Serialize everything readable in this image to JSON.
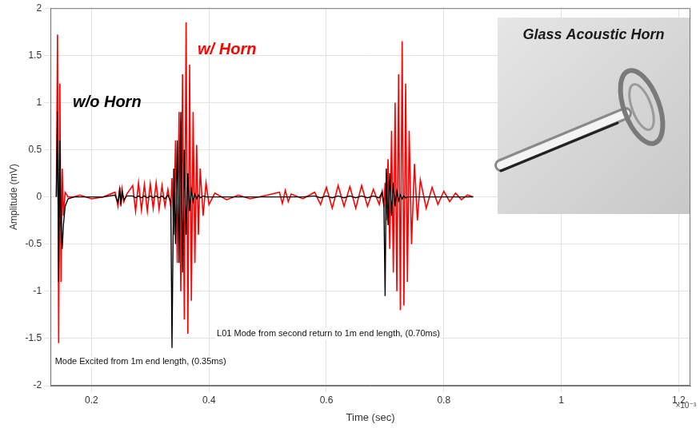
{
  "chart_data": {
    "type": "line",
    "x_label": "Time (sec)",
    "y_label": "Amplitude (mV)",
    "x_scale_note": "×10⁻³",
    "inset_title": "Glass Acoustic Horn",
    "annotations": [
      "Mode Excited from 1m end length, (0.35ms)",
      "L01 Mode from second return to 1m end length, (0.70ms)"
    ],
    "x": [
      0.14,
      0.142,
      0.144,
      0.146,
      0.148,
      0.15,
      0.152,
      0.155,
      0.16,
      0.17,
      0.18,
      0.2,
      0.22,
      0.24,
      0.245,
      0.248,
      0.25,
      0.252,
      0.255,
      0.26,
      0.27,
      0.275,
      0.28,
      0.285,
      0.29,
      0.295,
      0.3,
      0.305,
      0.31,
      0.315,
      0.32,
      0.325,
      0.33,
      0.335,
      0.337,
      0.34,
      0.343,
      0.346,
      0.349,
      0.352,
      0.355,
      0.358,
      0.361,
      0.364,
      0.367,
      0.37,
      0.373,
      0.376,
      0.379,
      0.382,
      0.385,
      0.39,
      0.395,
      0.4,
      0.41,
      0.43,
      0.45,
      0.47,
      0.5,
      0.52,
      0.525,
      0.53,
      0.535,
      0.54,
      0.56,
      0.58,
      0.59,
      0.6,
      0.61,
      0.62,
      0.63,
      0.64,
      0.65,
      0.66,
      0.67,
      0.68,
      0.69,
      0.695,
      0.698,
      0.7,
      0.702,
      0.705,
      0.708,
      0.711,
      0.714,
      0.717,
      0.72,
      0.723,
      0.726,
      0.729,
      0.732,
      0.735,
      0.738,
      0.741,
      0.745,
      0.75,
      0.755,
      0.76,
      0.77,
      0.78,
      0.79,
      0.8,
      0.81,
      0.82,
      0.83,
      0.84,
      0.85
    ],
    "series": [
      {
        "name": "w/ Horn",
        "color": "#ff0000",
        "values": [
          0,
          1.72,
          -1.55,
          1.2,
          -0.9,
          0.3,
          -0.2,
          0.05,
          0,
          0,
          0.02,
          -0.02,
          0,
          0.05,
          -0.1,
          0.1,
          -0.1,
          0.08,
          -0.05,
          0.03,
          0.12,
          -0.15,
          0.15,
          -0.14,
          0.13,
          -0.15,
          0.14,
          -0.12,
          0.15,
          -0.13,
          0.12,
          -0.1,
          0.08,
          -0.1,
          0.2,
          -0.4,
          0.6,
          -0.7,
          0.9,
          -1.0,
          1.3,
          -1.3,
          1.85,
          -1.45,
          1.4,
          -1.1,
          0.9,
          -0.7,
          0.55,
          -0.4,
          0.3,
          -0.2,
          0.15,
          -0.08,
          0.04,
          -0.03,
          0.02,
          -0.02,
          0.02,
          0.05,
          -0.07,
          0.07,
          -0.05,
          0.03,
          -0.02,
          0.05,
          -0.08,
          0.1,
          -0.12,
          0.12,
          -0.1,
          0.11,
          -0.12,
          0.12,
          -0.1,
          0.08,
          -0.08,
          0.06,
          -0.1,
          0.15,
          -0.25,
          0.4,
          -0.55,
          0.7,
          -0.8,
          1.0,
          -1.0,
          1.3,
          -1.2,
          1.65,
          -1.15,
          1.2,
          -0.9,
          0.7,
          -0.5,
          0.35,
          -0.25,
          0.18,
          -0.12,
          0.1,
          -0.08,
          0.06,
          -0.05,
          0.04,
          -0.03,
          0.02,
          0
        ]
      },
      {
        "name": "w/o Horn",
        "color": "#000000",
        "values": [
          0,
          0.9,
          -0.9,
          0.6,
          -0.3,
          -0.55,
          -0.3,
          -0.1,
          -0.02,
          0,
          0,
          0,
          0,
          0.02,
          -0.06,
          0.08,
          -0.08,
          0.06,
          -0.03,
          0.01,
          0.01,
          -0.01,
          0.01,
          -0.01,
          0.01,
          -0.01,
          0.01,
          -0.01,
          0.01,
          -0.01,
          0.01,
          -0.02,
          0.02,
          -0.05,
          -1.6,
          0.3,
          -0.5,
          0.6,
          -0.7,
          0.9,
          -0.8,
          0.5,
          -0.4,
          0.25,
          -0.15,
          0.08,
          -0.05,
          0.03,
          -0.02,
          0.02,
          -0.01,
          0.01,
          0,
          0,
          0,
          0,
          0,
          0,
          0,
          0,
          0,
          0,
          0,
          0,
          0,
          0.01,
          -0.01,
          0.01,
          -0.01,
          0.01,
          -0.01,
          0.01,
          -0.01,
          0.01,
          -0.01,
          0.01,
          -0.01,
          0.05,
          -0.1,
          -1.05,
          0.3,
          -0.3,
          0.25,
          -0.2,
          0.15,
          -0.1,
          0.06,
          -0.04,
          0.02,
          -0.02,
          0.01,
          -0.01,
          0,
          0,
          0,
          0,
          0,
          0,
          0,
          0,
          0,
          0,
          0,
          0,
          0,
          0,
          0
        ]
      }
    ],
    "xlim": [
      0.13,
      1.22
    ],
    "xticks": [
      0.2,
      0.4,
      0.6,
      0.8,
      1,
      1.2
    ],
    "ylim": [
      -2,
      2
    ],
    "yticks": [
      -2,
      -1.5,
      -1,
      -0.5,
      0,
      0.5,
      1,
      1.5,
      2
    ],
    "grid": true
  }
}
